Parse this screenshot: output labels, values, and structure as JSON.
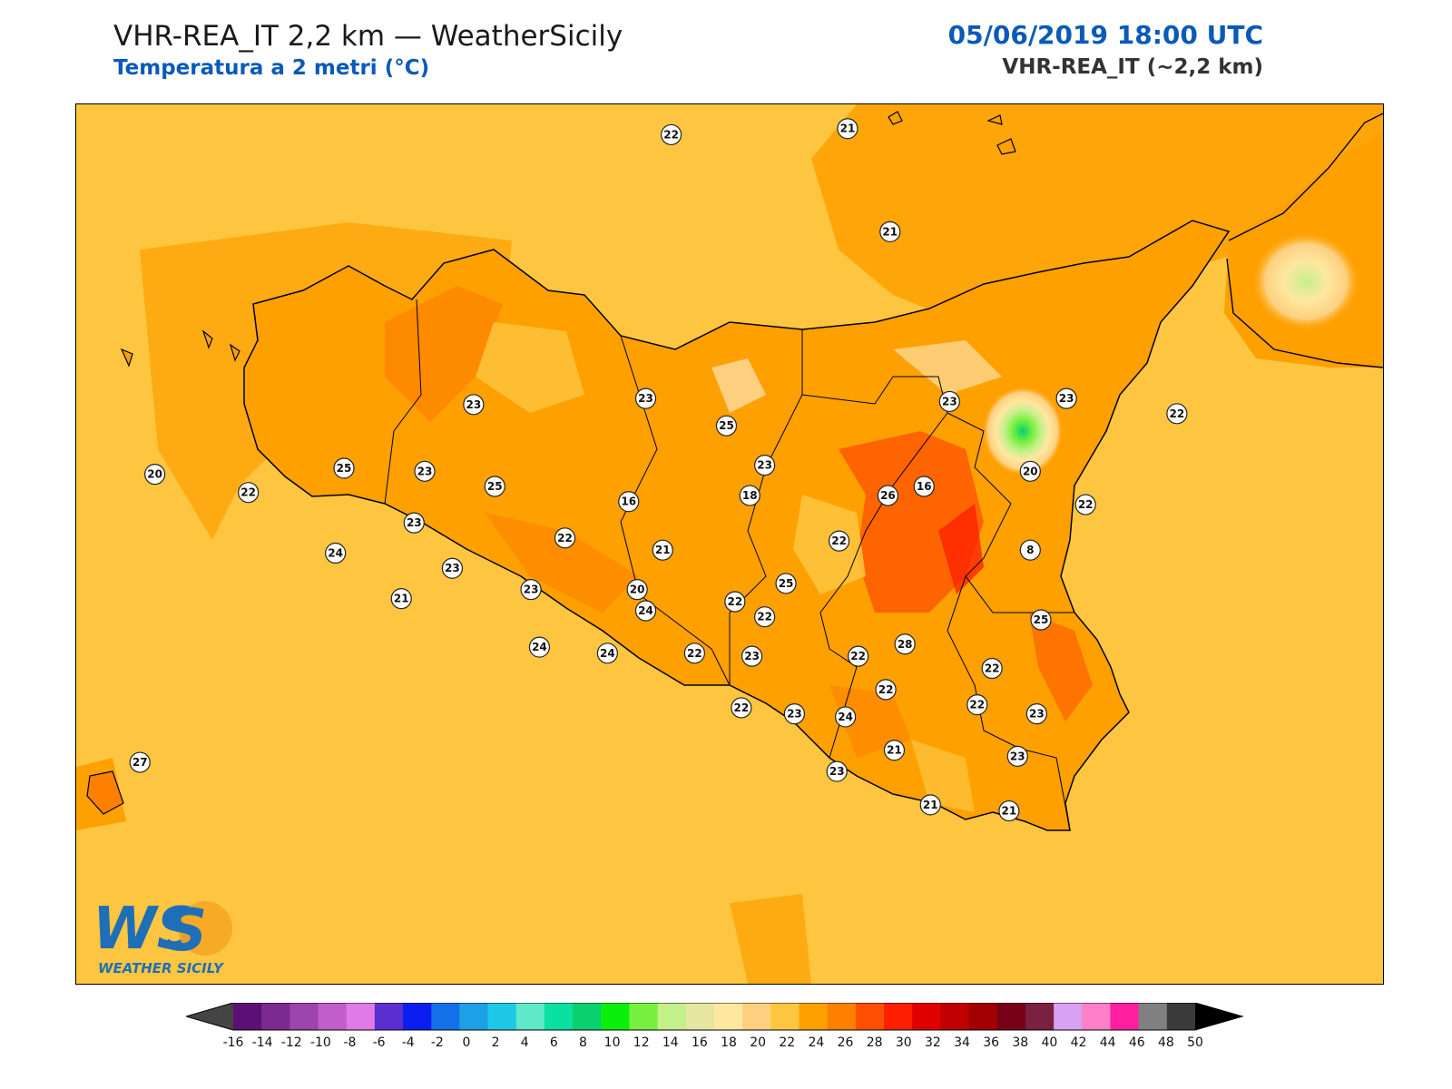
{
  "header": {
    "title": "VHR-REA_IT 2,2 km — WeatherSicily",
    "subtitle": "Temperatura a 2 metri (°C)",
    "valid_time": "05/06/2019 18:00 UTC",
    "model_resolution": "VHR-REA_IT (~2,2 km)"
  },
  "logo": {
    "initials": "WS",
    "name": "WEATHER SICILY"
  },
  "colorbar": {
    "ticks": [
      "-16",
      "-14",
      "-12",
      "-10",
      "-8",
      "-6",
      "-4",
      "-2",
      "0",
      "2",
      "4",
      "6",
      "8",
      "10",
      "12",
      "14",
      "16",
      "18",
      "20",
      "22",
      "24",
      "26",
      "28",
      "30",
      "32",
      "34",
      "36",
      "38",
      "40",
      "42",
      "44",
      "46",
      "48",
      "50"
    ],
    "colors": [
      "#3a0a4a",
      "#5a1075",
      "#7b2a8f",
      "#9c45aa",
      "#c15ec8",
      "#e07ae6",
      "#5a2fcf",
      "#0a1ef0",
      "#1470e8",
      "#1ea0e6",
      "#1ec9e6",
      "#5ee9c9",
      "#0ae0a0",
      "#0ad070",
      "#0af00a",
      "#78f040",
      "#c4f08a",
      "#e6e6a0",
      "#fee8a0",
      "#fdd080",
      "#fec640",
      "#fea000",
      "#fe8000",
      "#fe5000",
      "#fe1e00",
      "#e00000",
      "#c00000",
      "#a00000",
      "#780018",
      "#7a2040",
      "#d8a0f0",
      "#fe80c8",
      "#fe20a0",
      "#808080",
      "#3a3a3a"
    ]
  },
  "markers": [
    {
      "value": "22",
      "lon": 13.2,
      "lat": 39.1
    },
    {
      "value": "21",
      "lon": 14.03,
      "lat": 39.12
    },
    {
      "value": "21",
      "lon": 14.23,
      "lat": 38.78
    },
    {
      "value": "23",
      "lon": 12.27,
      "lat": 38.21
    },
    {
      "value": "23",
      "lon": 13.08,
      "lat": 38.23
    },
    {
      "value": "25",
      "lon": 13.46,
      "lat": 38.14
    },
    {
      "value": "23",
      "lon": 14.51,
      "lat": 38.22
    },
    {
      "value": "23",
      "lon": 15.06,
      "lat": 38.23
    },
    {
      "value": "22",
      "lon": 15.58,
      "lat": 38.18
    },
    {
      "value": "20",
      "lon": 10.77,
      "lat": 37.98
    },
    {
      "value": "22",
      "lon": 11.21,
      "lat": 37.92
    },
    {
      "value": "25",
      "lon": 11.66,
      "lat": 38.0
    },
    {
      "value": "25",
      "lon": 12.37,
      "lat": 37.94
    },
    {
      "value": "23",
      "lon": 13.64,
      "lat": 38.01
    },
    {
      "value": "23",
      "lon": 12.04,
      "lat": 37.99
    },
    {
      "value": "20",
      "lon": 14.89,
      "lat": 37.99
    },
    {
      "value": "16",
      "lon": 14.39,
      "lat": 37.94
    },
    {
      "value": "18",
      "lon": 13.57,
      "lat": 37.91
    },
    {
      "value": "26",
      "lon": 14.22,
      "lat": 37.91
    },
    {
      "value": "16",
      "lon": 13.0,
      "lat": 37.89
    },
    {
      "value": "22",
      "lon": 15.15,
      "lat": 37.88
    },
    {
      "value": "23",
      "lon": 11.99,
      "lat": 37.82
    },
    {
      "value": "22",
      "lon": 12.7,
      "lat": 37.77
    },
    {
      "value": "22",
      "lon": 13.99,
      "lat": 37.76
    },
    {
      "value": "21",
      "lon": 13.16,
      "lat": 37.73
    },
    {
      "value": "8",
      "lon": 14.89,
      "lat": 37.73
    },
    {
      "value": "24",
      "lon": 11.62,
      "lat": 37.72
    },
    {
      "value": "23",
      "lon": 12.17,
      "lat": 37.67
    },
    {
      "value": "20",
      "lon": 13.04,
      "lat": 37.6
    },
    {
      "value": "23",
      "lon": 12.54,
      "lat": 37.6
    },
    {
      "value": "25",
      "lon": 13.74,
      "lat": 37.62
    },
    {
      "value": "21",
      "lon": 11.93,
      "lat": 37.57
    },
    {
      "value": "22",
      "lon": 13.5,
      "lat": 37.56
    },
    {
      "value": "24",
      "lon": 13.08,
      "lat": 37.53
    },
    {
      "value": "22",
      "lon": 13.64,
      "lat": 37.51
    },
    {
      "value": "25",
      "lon": 14.94,
      "lat": 37.5
    },
    {
      "value": "28",
      "lon": 14.3,
      "lat": 37.42
    },
    {
      "value": "24",
      "lon": 12.58,
      "lat": 37.41
    },
    {
      "value": "24",
      "lon": 12.9,
      "lat": 37.39
    },
    {
      "value": "22",
      "lon": 13.31,
      "lat": 37.39
    },
    {
      "value": "23",
      "lon": 13.58,
      "lat": 37.38
    },
    {
      "value": "22",
      "lon": 14.08,
      "lat": 37.38
    },
    {
      "value": "22",
      "lon": 14.71,
      "lat": 37.34
    },
    {
      "value": "22",
      "lon": 14.21,
      "lat": 37.27
    },
    {
      "value": "22",
      "lon": 14.64,
      "lat": 37.22
    },
    {
      "value": "22",
      "lon": 13.53,
      "lat": 37.21
    },
    {
      "value": "23",
      "lon": 13.78,
      "lat": 37.19
    },
    {
      "value": "24",
      "lon": 14.02,
      "lat": 37.18
    },
    {
      "value": "23",
      "lon": 14.92,
      "lat": 37.19
    },
    {
      "value": "21",
      "lon": 14.25,
      "lat": 37.07
    },
    {
      "value": "23",
      "lon": 14.83,
      "lat": 37.05
    },
    {
      "value": "27",
      "lon": 10.7,
      "lat": 37.03
    },
    {
      "value": "23",
      "lon": 13.98,
      "lat": 37.0
    },
    {
      "value": "21",
      "lon": 14.42,
      "lat": 36.89
    },
    {
      "value": "21",
      "lon": 14.79,
      "lat": 36.87
    }
  ]
}
